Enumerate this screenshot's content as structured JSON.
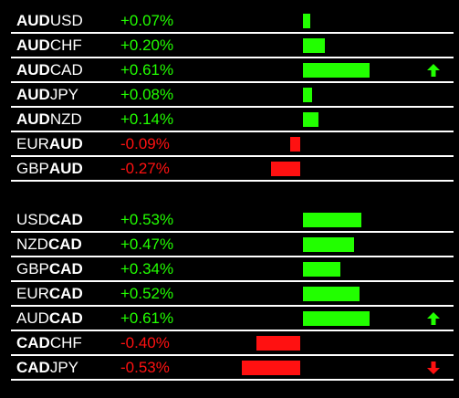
{
  "colors": {
    "positive": "#22ff00",
    "negative": "#ff1111",
    "text": "#ffffff",
    "background": "#000000"
  },
  "groups": [
    {
      "rows": [
        {
          "pre": "",
          "bold": "AUD",
          "post": "USD",
          "change": "+0.07%",
          "value": 0.07,
          "arrow": ""
        },
        {
          "pre": "",
          "bold": "AUD",
          "post": "CHF",
          "change": "+0.20%",
          "value": 0.2,
          "arrow": ""
        },
        {
          "pre": "",
          "bold": "AUD",
          "post": "CAD",
          "change": "+0.61%",
          "value": 0.61,
          "arrow": "up"
        },
        {
          "pre": "",
          "bold": "AUD",
          "post": "JPY",
          "change": "+0.08%",
          "value": 0.08,
          "arrow": ""
        },
        {
          "pre": "",
          "bold": "AUD",
          "post": "NZD",
          "change": "+0.14%",
          "value": 0.14,
          "arrow": ""
        },
        {
          "pre": "EUR",
          "bold": "AUD",
          "post": "",
          "change": "-0.09%",
          "value": -0.09,
          "arrow": ""
        },
        {
          "pre": "GBP",
          "bold": "AUD",
          "post": "",
          "change": "-0.27%",
          "value": -0.27,
          "arrow": ""
        }
      ]
    },
    {
      "rows": [
        {
          "pre": "USD",
          "bold": "CAD",
          "post": "",
          "change": "+0.53%",
          "value": 0.53,
          "arrow": ""
        },
        {
          "pre": "NZD",
          "bold": "CAD",
          "post": "",
          "change": "+0.47%",
          "value": 0.47,
          "arrow": ""
        },
        {
          "pre": "GBP",
          "bold": "CAD",
          "post": "",
          "change": "+0.34%",
          "value": 0.34,
          "arrow": ""
        },
        {
          "pre": "EUR",
          "bold": "CAD",
          "post": "",
          "change": "+0.52%",
          "value": 0.52,
          "arrow": ""
        },
        {
          "pre": "AUD",
          "bold": "CAD",
          "post": "",
          "change": "+0.61%",
          "value": 0.61,
          "arrow": "up"
        },
        {
          "pre": "",
          "bold": "CAD",
          "post": "CHF",
          "change": "-0.40%",
          "value": -0.4,
          "arrow": ""
        },
        {
          "pre": "",
          "bold": "CAD",
          "post": "JPY",
          "change": "-0.53%",
          "value": -0.53,
          "arrow": "down"
        }
      ]
    }
  ]
}
